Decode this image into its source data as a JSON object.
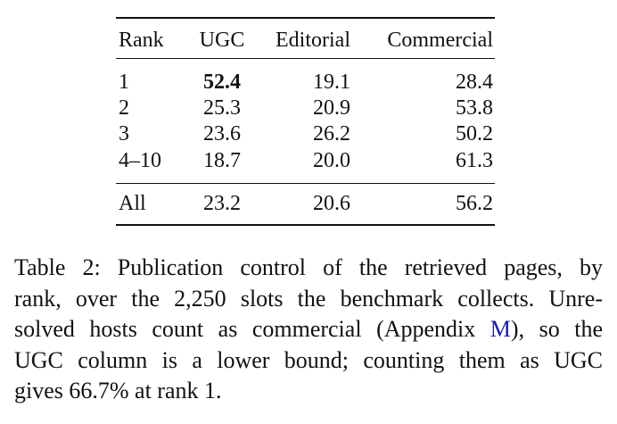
{
  "table": {
    "header": [
      "Rank",
      "UGC",
      "Editorial",
      "Commercial"
    ],
    "rows": [
      [
        "1",
        {
          "text": "52.4",
          "bold": true
        },
        "19.1",
        "28.4"
      ],
      [
        "2",
        "25.3",
        "20.9",
        "53.8"
      ],
      [
        "3",
        "23.6",
        "26.2",
        "50.2"
      ],
      [
        "4–10",
        "18.7",
        "20.0",
        "61.3"
      ]
    ],
    "footer": [
      "All",
      "23.2",
      "20.6",
      "56.2"
    ]
  },
  "caption": {
    "lines": [
      "Table 2: Publication control of the retrieved pages, by",
      "rank, over the 2,250 slots the benchmark collects. Unre-",
      {
        "before": "solved hosts count as commercial (Appendix ",
        "link": "M",
        "after": "), so the"
      },
      "UGC column is a lower bound; counting them as UGC",
      "gives 66.7% at rank 1."
    ]
  }
}
